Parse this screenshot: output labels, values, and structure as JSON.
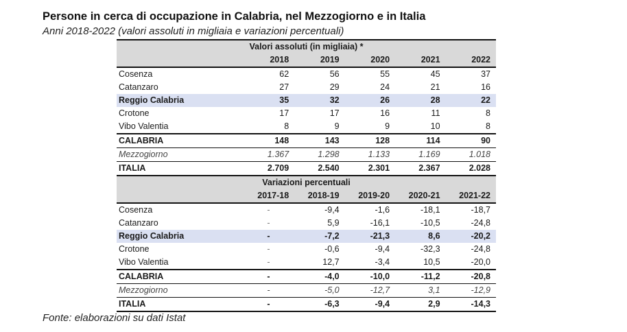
{
  "title": "Persone in cerca di occupazione in Calabria, nel Mezzogiorno e in Italia",
  "subtitle": "Anni 2018-2022 (valori assoluti in migliaia e variazioni percentuali)",
  "source": "Fonte: elaborazioni su dati Istat",
  "highlight_color": "#dae0f2",
  "header_color": "#d9d9d9",
  "absolute": {
    "section_title": "Valori assoluti (in migliaia) *",
    "columns": [
      "2018",
      "2019",
      "2020",
      "2021",
      "2022"
    ],
    "rows": [
      {
        "label": "Cosenza",
        "values": [
          "62",
          "56",
          "55",
          "45",
          "37"
        ]
      },
      {
        "label": "Catanzaro",
        "values": [
          "27",
          "29",
          "24",
          "21",
          "16"
        ]
      },
      {
        "label": "Reggio Calabria",
        "values": [
          "35",
          "32",
          "26",
          "28",
          "22"
        ]
      },
      {
        "label": "Crotone",
        "values": [
          "17",
          "17",
          "16",
          "11",
          "8"
        ]
      },
      {
        "label": "Vibo Valentia",
        "values": [
          "8",
          "9",
          "9",
          "10",
          "8"
        ]
      },
      {
        "label": "CALABRIA",
        "values": [
          "148",
          "143",
          "128",
          "114",
          "90"
        ]
      },
      {
        "label": "Mezzogiorno",
        "values": [
          "1.367",
          "1.298",
          "1.133",
          "1.169",
          "1.018"
        ]
      },
      {
        "label": "ITALIA",
        "values": [
          "2.709",
          "2.540",
          "2.301",
          "2.367",
          "2.028"
        ]
      }
    ]
  },
  "percent": {
    "section_title": "Variazioni percentuali",
    "columns": [
      "2017-18",
      "2018-19",
      "2019-20",
      "2020-21",
      "2021-22"
    ],
    "rows": [
      {
        "label": "Cosenza",
        "values": [
          "-",
          "-9,4",
          "-1,6",
          "-18,1",
          "-18,7"
        ]
      },
      {
        "label": "Catanzaro",
        "values": [
          "-",
          "5,9",
          "-16,1",
          "-10,5",
          "-24,8"
        ]
      },
      {
        "label": "Reggio Calabria",
        "values": [
          "-",
          "-7,2",
          "-21,3",
          "8,6",
          "-20,2"
        ]
      },
      {
        "label": "Crotone",
        "values": [
          "-",
          "-0,6",
          "-9,4",
          "-32,3",
          "-24,8"
        ]
      },
      {
        "label": "Vibo Valentia",
        "values": [
          "-",
          "12,7",
          "-3,4",
          "10,5",
          "-20,0"
        ]
      },
      {
        "label": "CALABRIA",
        "values": [
          "-",
          "-4,0",
          "-10,0",
          "-11,2",
          "-20,8"
        ]
      },
      {
        "label": "Mezzogiorno",
        "values": [
          "-",
          "-5,0",
          "-12,7",
          "3,1",
          "-12,9"
        ]
      },
      {
        "label": "ITALIA",
        "values": [
          "-",
          "-6,3",
          "-9,4",
          "2,9",
          "-14,3"
        ]
      }
    ]
  }
}
